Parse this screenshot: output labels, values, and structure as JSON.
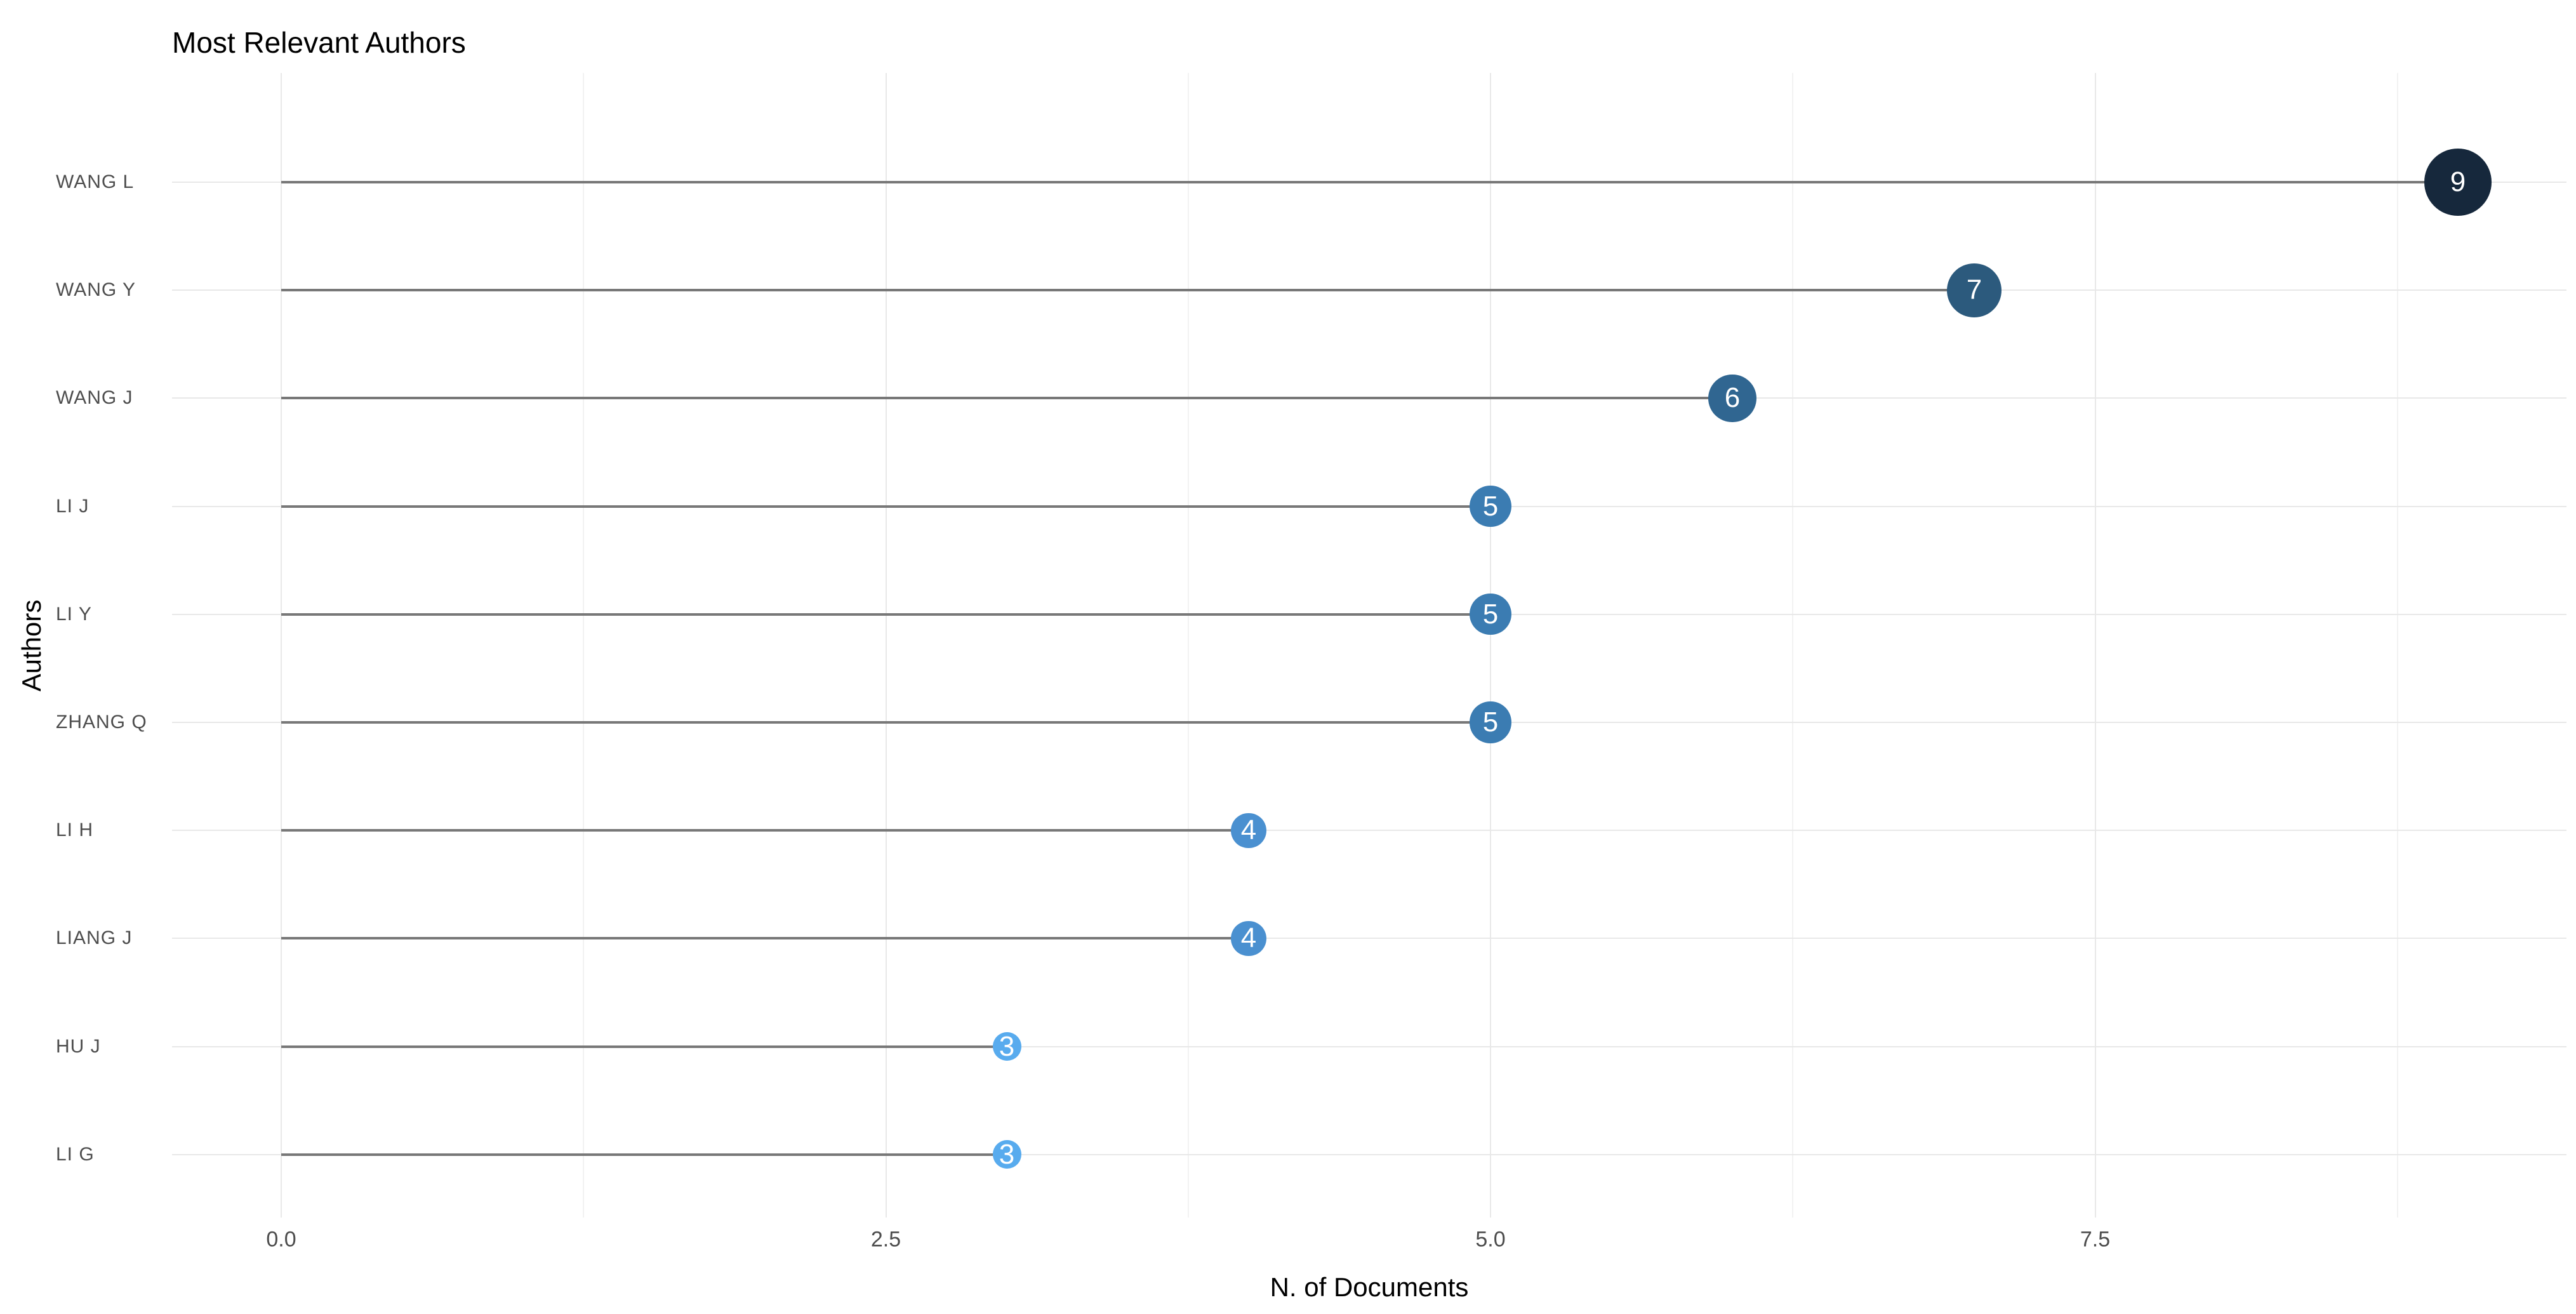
{
  "chart_data": {
    "type": "scatter",
    "variant": "lollipop",
    "title": "Most Relevant Authors",
    "xlabel": "N. of Documents",
    "ylabel": "Authors",
    "categories": [
      "WANG L",
      "WANG Y",
      "WANG J",
      "LI J",
      "LI Y",
      "ZHANG Q",
      "LI H",
      "LIANG J",
      "HU J",
      "LI G"
    ],
    "values": [
      9,
      7,
      6,
      5,
      5,
      5,
      4,
      4,
      3,
      3
    ],
    "x_tick_labels": [
      "0.0",
      "2.5",
      "5.0",
      "7.5"
    ],
    "x_tick_values": [
      0,
      2.5,
      5,
      7.5
    ],
    "x_minor_tick_values": [
      1.25,
      3.75,
      6.25,
      8.75
    ],
    "xlim": [
      -0.45,
      9.45
    ],
    "grid": true,
    "legend": false,
    "color_by_value": {
      "3": "#58abee",
      "4": "#4a90d0",
      "5": "#3b7cb2",
      "6": "#306691",
      "7": "#2c5a7d",
      "9": "#16283c"
    },
    "colors": {
      "stem": "#787878",
      "grid_major": "#e8e8e8",
      "grid_minor": "#f2f2f2",
      "tick_label": "#4d4d4d",
      "axis_title": "#000000",
      "title": "#000000",
      "bubble_text": "#ffffff",
      "background": "#ffffff"
    }
  }
}
